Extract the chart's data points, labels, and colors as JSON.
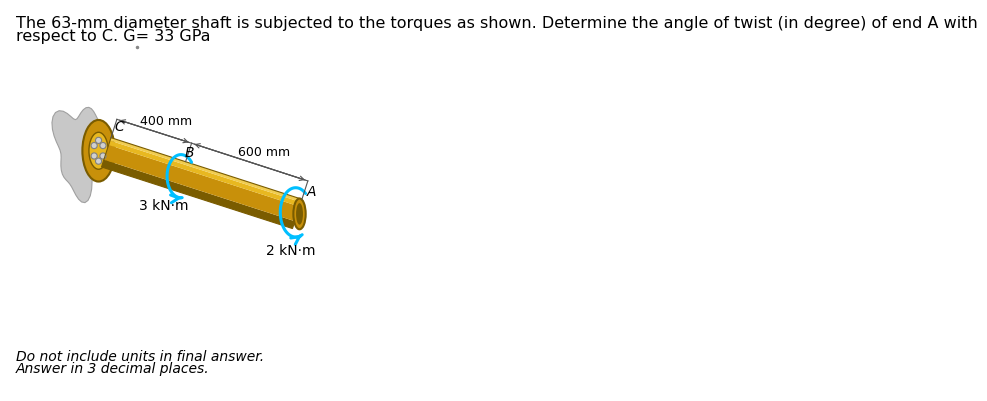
{
  "title_line1": "The 63-mm diameter shaft is subjected to the torques as shown. Determine the angle of twist (in degree) of end A with",
  "title_line2": "respect to C. G= 33 GPa",
  "footer_line1": "Do not include units in final answer.",
  "footer_line2": "Answer in 3 decimal places.",
  "shaft_color_dark": "#7A5C00",
  "shaft_color_mid": "#C8900A",
  "shaft_color_light": "#E8B820",
  "shaft_color_top": "#F0CC50",
  "wall_color_light": "#D0D0D0",
  "wall_color_mid": "#B0B0B0",
  "wall_color_dark": "#909090",
  "torque_color": "#00BFFF",
  "bg_color": "#FFFFFF",
  "label_A": "A",
  "label_B": "B",
  "label_C": "C",
  "label_400mm": "400 mm",
  "label_600mm": "600 mm",
  "label_3kNm": "3 kN·m",
  "label_2kNm": "2 kN·m",
  "font_size_title": 11.5,
  "font_size_labels": 10,
  "font_size_footer": 10
}
